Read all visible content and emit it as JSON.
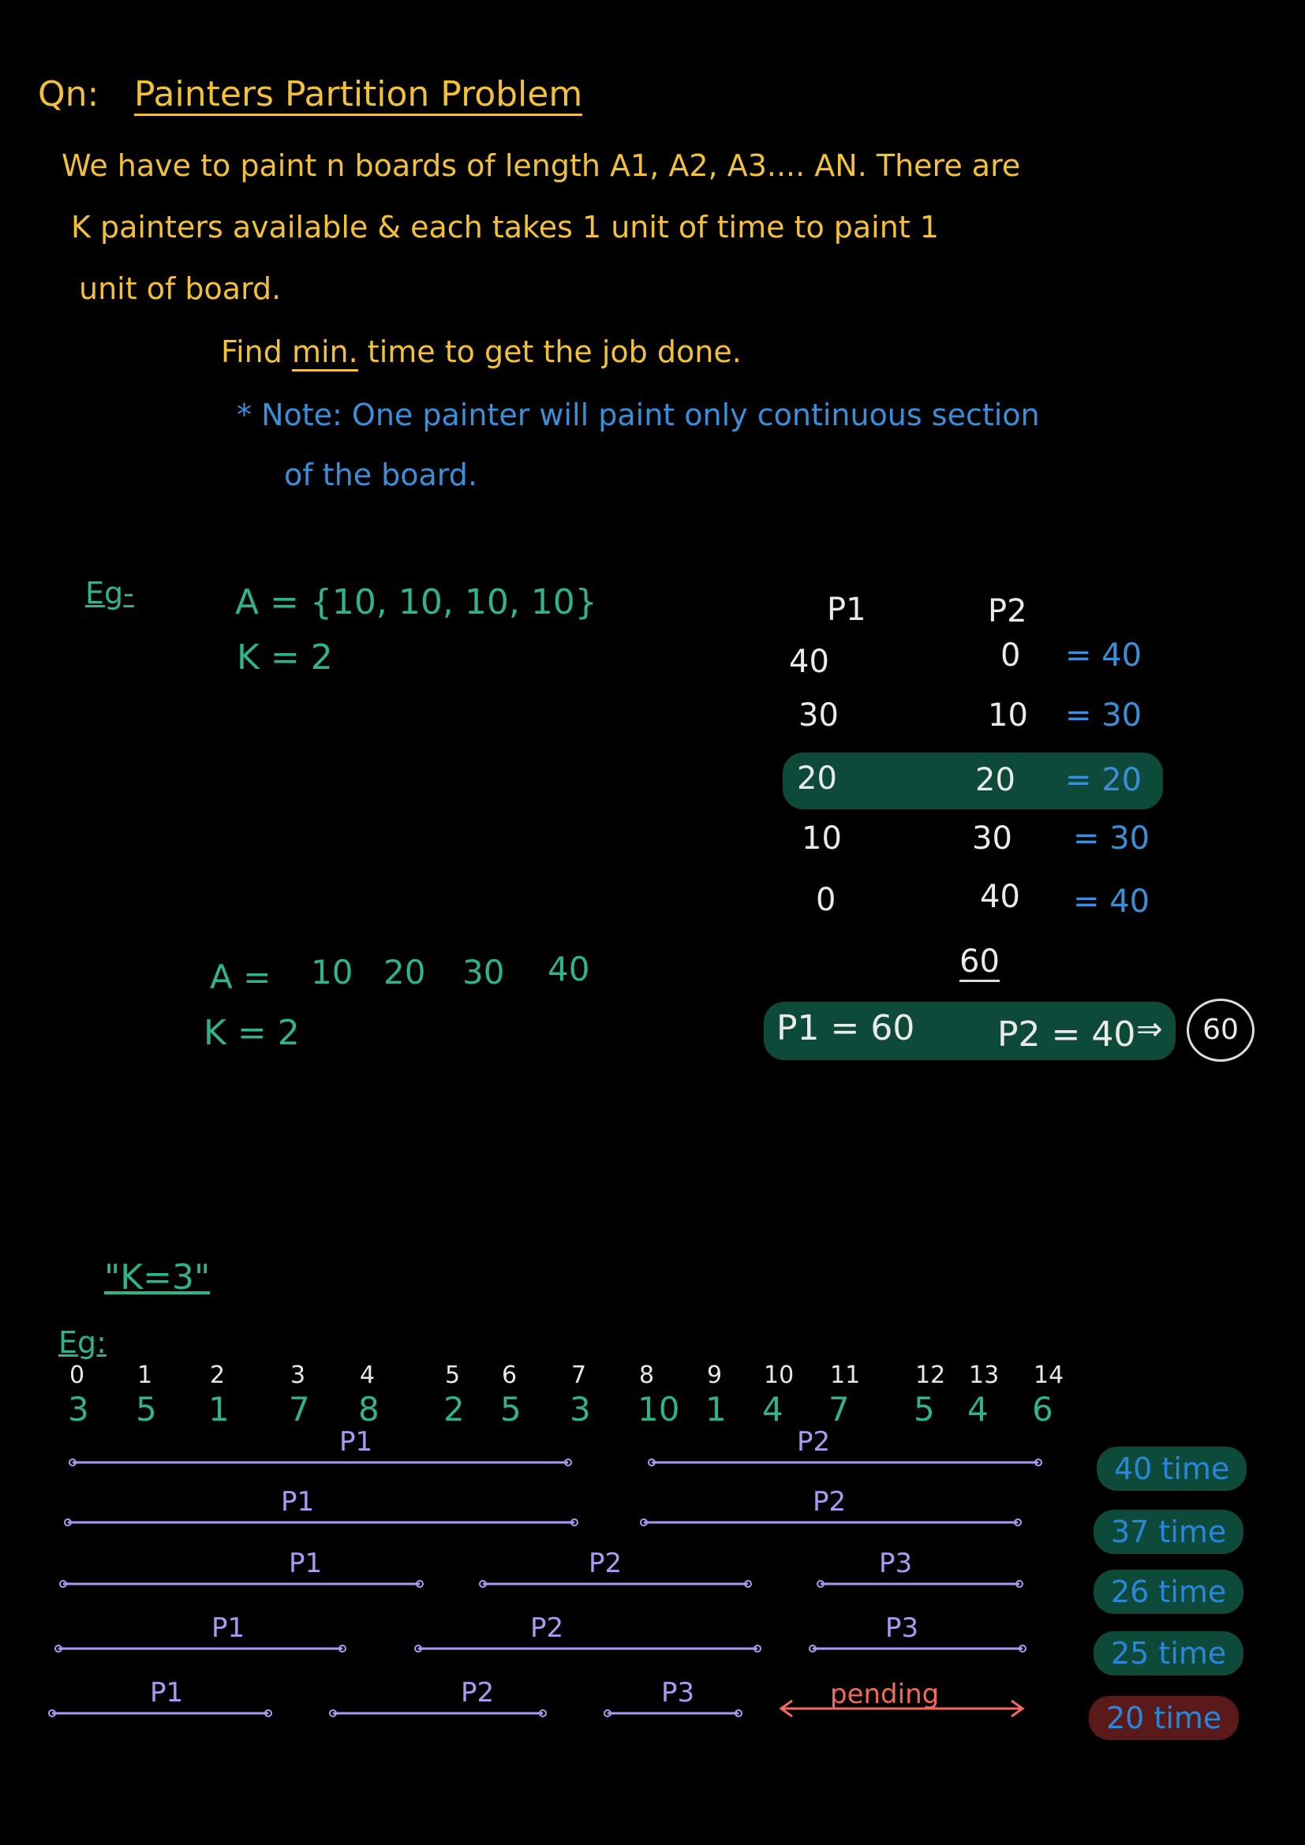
{
  "question": {
    "prefix": "Qn:",
    "title": "Painters Partition Problem",
    "line1": "We have to paint n boards of length A1, A2, A3.... AN. There are",
    "line2": "K painters available & each takes 1 unit of time to paint 1",
    "line3": "unit of board.",
    "find_pre": "Find",
    "find_min": "min.",
    "find_post": "time to get the job done.",
    "note_line1": "* Note: One painter will paint only continuous section",
    "note_line2": "of the board."
  },
  "example1": {
    "label": "Eg-",
    "array": "A = {10, 10, 10, 10}",
    "k": "K = 2",
    "header_p1": "P1",
    "header_p2": "P2",
    "rows": [
      {
        "p1": "40",
        "p2": "0",
        "max": "= 40"
      },
      {
        "p1": "30",
        "p2": "10",
        "max": "= 30"
      },
      {
        "p1": "20",
        "p2": "20",
        "max": "= 20"
      },
      {
        "p1": "10",
        "p2": "30",
        "max": "= 30"
      },
      {
        "p1": "0",
        "p2": "40",
        "max": "= 40"
      }
    ]
  },
  "example2": {
    "array_label": "A =",
    "values": [
      "10",
      "20",
      "30",
      "40"
    ],
    "k": "K = 2",
    "sum_note": "60",
    "p1": "P1 = 60",
    "p2": "P2 = 40",
    "arrow": "⇒",
    "result": "60"
  },
  "example3": {
    "k_note": "\"K=3\"",
    "label": "Eg:",
    "indices": [
      "0",
      "1",
      "2",
      "3",
      "4",
      "5",
      "6",
      "7",
      "8",
      "9",
      "10",
      "11",
      "12",
      "13",
      "14"
    ],
    "values": [
      "3",
      "5",
      "1",
      "7",
      "8",
      "2",
      "5",
      "3",
      "10",
      "1",
      "4",
      "7",
      "5",
      "4",
      "6"
    ],
    "partitions": [
      {
        "labels": [
          "P1",
          "P2",
          ""
        ],
        "time": "40 time"
      },
      {
        "labels": [
          "P1",
          "P2",
          ""
        ],
        "time": "37 time"
      },
      {
        "labels": [
          "P1",
          "P2",
          "P3"
        ],
        "time": "26 time"
      },
      {
        "labels": [
          "P1",
          "P2",
          "P3"
        ],
        "time": "25 time"
      },
      {
        "labels": [
          "P1",
          "P2",
          "P3"
        ],
        "time": "20 time",
        "pending": "pending"
      }
    ]
  },
  "colors": {
    "yellow": "#f2c13a",
    "blue": "#3a8fd8",
    "green": "#2fb38a",
    "purple": "#a79cf0",
    "red": "#f06a5e",
    "pill_green": "#0d4a3a",
    "pill_red": "#5a1a1a"
  }
}
